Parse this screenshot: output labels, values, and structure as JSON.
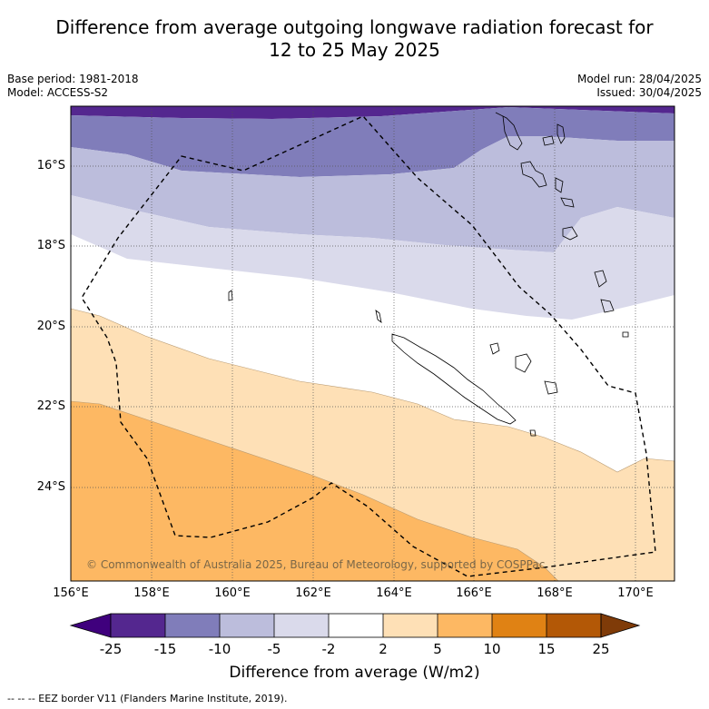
{
  "title_line1": "Difference from average outgoing longwave radiation forecast for",
  "title_line2": "12 to 25 May 2025",
  "base_period": "Base period: 1981-2018",
  "model": "Model: ACCESS-S2",
  "model_run": "Model run: 28/04/2025",
  "issued": "Issued: 30/04/2025",
  "copyright": "© Commonwealth of Australia 2025, Bureau of Meteorology, supported by COSPPac",
  "lat_ticks": [
    "16°S",
    "18°S",
    "20°S",
    "22°S",
    "24°S"
  ],
  "lon_ticks": [
    "156°E",
    "158°E",
    "160°E",
    "162°E",
    "164°E",
    "166°E",
    "168°E",
    "170°E"
  ],
  "colorbar": {
    "title": "Difference from average (W/m2)",
    "labels": [
      "-25",
      "-15",
      "-10",
      "-5",
      "-2",
      "2",
      "5",
      "10",
      "15",
      "25"
    ],
    "colors": [
      "#3f007d",
      "#54278f",
      "#807dba",
      "#bcbddc",
      "#dadaeb",
      "#ffffff",
      "#fee0b6",
      "#fdb863",
      "#e08214",
      "#b35806",
      "#7f3b08"
    ]
  },
  "footnote": "--  --  -- EEZ border V11 (Flanders Marine Institute, 2019)."
}
